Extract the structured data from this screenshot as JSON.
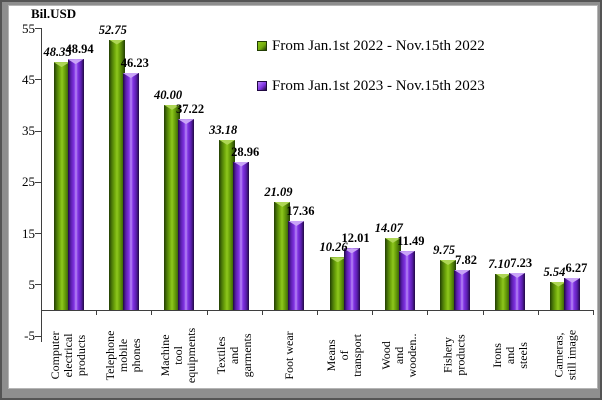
{
  "window": {
    "background": "#8e8e8e",
    "frame_border": "#545454",
    "panel_background": "#ffffff"
  },
  "chart_data": {
    "type": "bar",
    "title": "Bil.USD",
    "ylabel": "Bil.USD",
    "xlabel": "",
    "ylim": [
      -5,
      55
    ],
    "yticks": [
      55,
      45,
      35,
      25,
      15,
      5,
      -5
    ],
    "grid": false,
    "legend_position": "top-right-inside",
    "categories": [
      "Computer\nelectrical\nproducts",
      "Telephone\nmobile\nphones",
      "Machine\ntool\nequipments",
      "Textiles\nand\ngarments",
      "Foot wear",
      "Means\nof\ntransport",
      "Wood\nand\nwooden..",
      "Fishery\nproducts",
      "Irons\nand\nsteels",
      "Cameras,\nstill image"
    ],
    "series": [
      {
        "name": "From Jan.1st 2022 - Nov.15th 2022",
        "values": [
          48.35,
          52.75,
          40.0,
          33.18,
          21.09,
          10.26,
          14.07,
          9.75,
          7.1,
          5.54
        ],
        "value_labels": [
          "48.35",
          "52.75",
          "40.00",
          "33.18",
          "21.09",
          "10.26",
          "14.07",
          "9.75",
          "7.10",
          "5.54"
        ],
        "label_style": "bold-italic",
        "color_dark": "#223d04",
        "color_deep": "#4c7a08",
        "color_main": "#74ad0d",
        "color_light": "#8ec61e",
        "color_cap": "#aed655"
      },
      {
        "name": "From Jan.1st 2023 - Nov.15th 2023",
        "values": [
          48.94,
          46.23,
          37.22,
          28.96,
          17.36,
          12.01,
          11.49,
          7.82,
          7.23,
          6.27
        ],
        "value_labels": [
          "48.94",
          "46.23",
          "37.22",
          "28.96",
          "17.36",
          "12.01",
          "11.49",
          "7.82",
          "7.23",
          "6.27"
        ],
        "label_style": "bold",
        "color_dark": "#200941",
        "color_deep": "#5a1eae",
        "color_main": "#8133e4",
        "color_light": "#b685f5",
        "color_cap": "#c9a4f7"
      }
    ]
  }
}
